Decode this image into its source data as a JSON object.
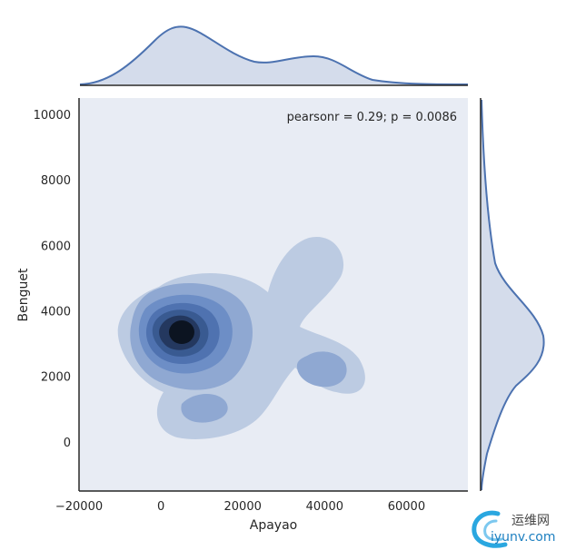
{
  "chart_data": {
    "type": "kde-joint",
    "xlabel": "Apayao",
    "ylabel": "Benguet",
    "xlim": [
      -20000,
      75000
    ],
    "ylim": [
      -1500,
      10500
    ],
    "x_ticks": [
      "−20000",
      "0",
      "20000",
      "40000",
      "60000"
    ],
    "x_tick_values": [
      -20000,
      0,
      20000,
      40000,
      60000
    ],
    "y_ticks": [
      "0",
      "2000",
      "4000",
      "6000",
      "8000",
      "10000"
    ],
    "y_tick_values": [
      0,
      2000,
      4000,
      6000,
      8000,
      10000
    ],
    "annotation": "pearsonr = 0.29; p = 0.0086",
    "density_peaks": [
      {
        "x": 5000,
        "y": 3300,
        "level": "highest"
      },
      {
        "x": 38000,
        "y": 2200,
        "level": "secondary"
      },
      {
        "x": 10000,
        "y": 1000,
        "level": "minor"
      }
    ],
    "marginal_x_peaks": [
      {
        "x": 5000,
        "relative_height": 1.0
      },
      {
        "x": 38000,
        "relative_height": 0.5
      }
    ],
    "marginal_y_peaks": [
      {
        "y": 3200,
        "relative_height": 1.0
      }
    ],
    "grid": false,
    "colors": {
      "line": "#4c72b0",
      "panel_bg": "#e8ecf4",
      "marginal_fill": "#d4dceb",
      "levels": [
        "#bccbe2",
        "#8fa8d2",
        "#6d8ec6",
        "#4f72b0",
        "#395a91",
        "#24385f",
        "#0c1421"
      ]
    }
  },
  "watermark": {
    "cn_text": "运维网",
    "url_text": "iyunv.com"
  }
}
